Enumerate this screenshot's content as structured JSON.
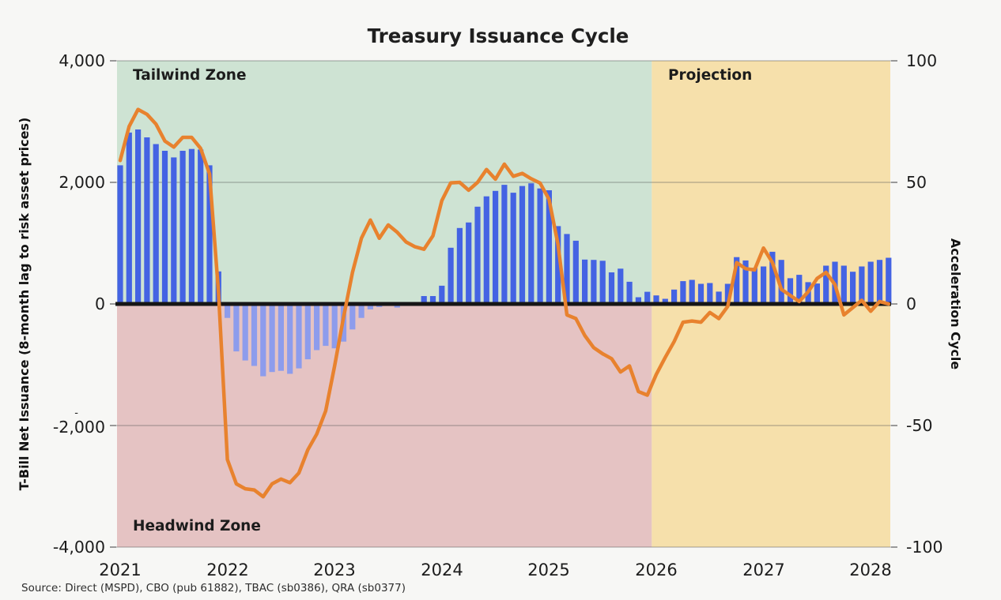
{
  "title": "Treasury Issuance Cycle",
  "source": "Source: Direct (MSPD), CBO (pub 61882), TBAC (sb0386), QRA (sb0377)",
  "left_axis": {
    "title": "T-Bill Net Issuance (8-month lag to risk asset prices)",
    "ticks": [
      "4,000",
      "2,000",
      "0",
      "-2,000",
      "-4,000"
    ],
    "wrap_artifact": "-"
  },
  "right_axis": {
    "title": "Acceleration Cycle",
    "ticks": [
      "100",
      "50",
      "0",
      "-50",
      "-100"
    ]
  },
  "x_axis": {
    "ticks": [
      "2021",
      "2022",
      "2023",
      "2024",
      "2025",
      "2026",
      "2027",
      "2028"
    ]
  },
  "zones": {
    "tailwind": {
      "label": "Tailwind Zone",
      "fill": "#cee3d3",
      "label_color": "#4d8b60"
    },
    "headwind": {
      "label": "Headwind Zone",
      "fill": "#e5c3c3",
      "label_color": "#9c4b4b"
    },
    "projection": {
      "label": "Projection",
      "fill": "#f6e0ab",
      "label_color": "#8f7b36"
    }
  },
  "chart_data": {
    "type": "bar",
    "subtype": "bar-with-line-overlay",
    "frequency": "monthly",
    "x_start": "2021-01",
    "x_end": "2028-03",
    "left_ylim": [
      -4000,
      4000
    ],
    "right_ylim": [
      -100,
      100
    ],
    "grid": "horizontal",
    "projection_start_index": 60,
    "bar_series": {
      "name": "T-Bill Net Issuance",
      "axis": "left",
      "color_positive": "#4463e3",
      "color_negative": "#8d9cec",
      "values": [
        2280,
        2820,
        2870,
        2740,
        2630,
        2520,
        2410,
        2520,
        2550,
        2540,
        2280,
        535,
        -230,
        -780,
        -930,
        -1020,
        -1190,
        -1120,
        -1100,
        -1150,
        -1060,
        -910,
        -760,
        -690,
        -730,
        -620,
        -420,
        -230,
        -90,
        -50,
        -20,
        -60,
        -15,
        0,
        130,
        130,
        300,
        925,
        1250,
        1340,
        1600,
        1770,
        1860,
        1960,
        1830,
        1940,
        1985,
        1900,
        1870,
        1280,
        1150,
        1040,
        730,
        725,
        710,
        520,
        580,
        365,
        110,
        200,
        140,
        85,
        237,
        375,
        396,
        331,
        344,
        202,
        331,
        770,
        715,
        595,
        617,
        858,
        725,
        423,
        479,
        358,
        337,
        630,
        695,
        630,
        530,
        617,
        695,
        725,
        760
      ]
    },
    "line_series": {
      "name": "Acceleration Cycle",
      "axis": "right",
      "color": "#e8822e",
      "values": [
        59,
        73,
        80,
        78,
        74,
        67,
        64.5,
        68.5,
        68.5,
        64,
        53.5,
        5,
        -64,
        -74,
        -76,
        -76.5,
        -79.3,
        -74,
        -72,
        -73.5,
        -69.5,
        -60,
        -53.5,
        -44,
        -25.5,
        -5.5,
        13,
        27,
        34.5,
        27,
        32.5,
        29.5,
        25.5,
        23.5,
        22.5,
        28,
        42.5,
        49.8,
        50,
        46.8,
        50,
        55.3,
        51.3,
        57.5,
        52.5,
        53.7,
        51.5,
        49.7,
        43,
        24.5,
        -4.5,
        -6,
        -13,
        -18,
        -20.5,
        -22.5,
        -28,
        -25.5,
        -36,
        -37.5,
        -29,
        -22,
        -15.5,
        -7.5,
        -7,
        -7.5,
        -3.5,
        -6,
        -1,
        17,
        14.5,
        14,
        23,
        17,
        6,
        3.5,
        1,
        5,
        10.5,
        13,
        8,
        -4.5,
        -1.5,
        1.5,
        -3,
        1,
        0
      ]
    }
  },
  "style": {
    "background": "#f7f7f5",
    "zero_line_color": "#161616",
    "gridline_color": "#5a5a5a",
    "tick_color": "#999999"
  }
}
